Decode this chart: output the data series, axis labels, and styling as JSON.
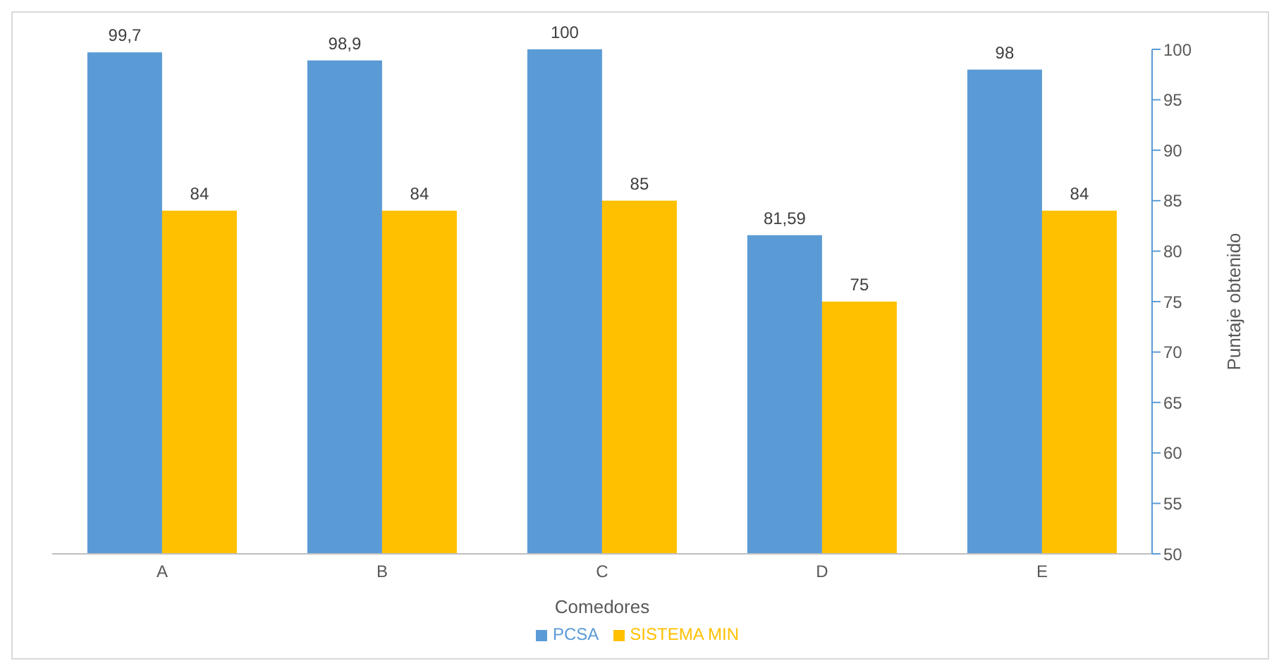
{
  "chart_data": {
    "type": "bar",
    "xlabel": "Comedores",
    "ylabel": "Puntaje obtenido",
    "categories": [
      "A",
      "B",
      "C",
      "D",
      "E"
    ],
    "series": [
      {
        "name": "PCSA",
        "color": "#5b9bd5",
        "values": [
          99.7,
          98.9,
          100,
          81.59,
          98
        ],
        "value_labels": [
          "99,7",
          "98,9",
          "100",
          "81,59",
          "98"
        ]
      },
      {
        "name": "SISTEMA MIN",
        "color": "#ffc000",
        "values": [
          84,
          84,
          85,
          75,
          84
        ],
        "value_labels": [
          "84",
          "84",
          "85",
          "75",
          "84"
        ]
      }
    ],
    "ylim": [
      50,
      100
    ],
    "yticks": [
      50,
      55,
      60,
      65,
      70,
      75,
      80,
      85,
      90,
      95,
      100
    ],
    "grid": false,
    "legend": "bottom"
  }
}
